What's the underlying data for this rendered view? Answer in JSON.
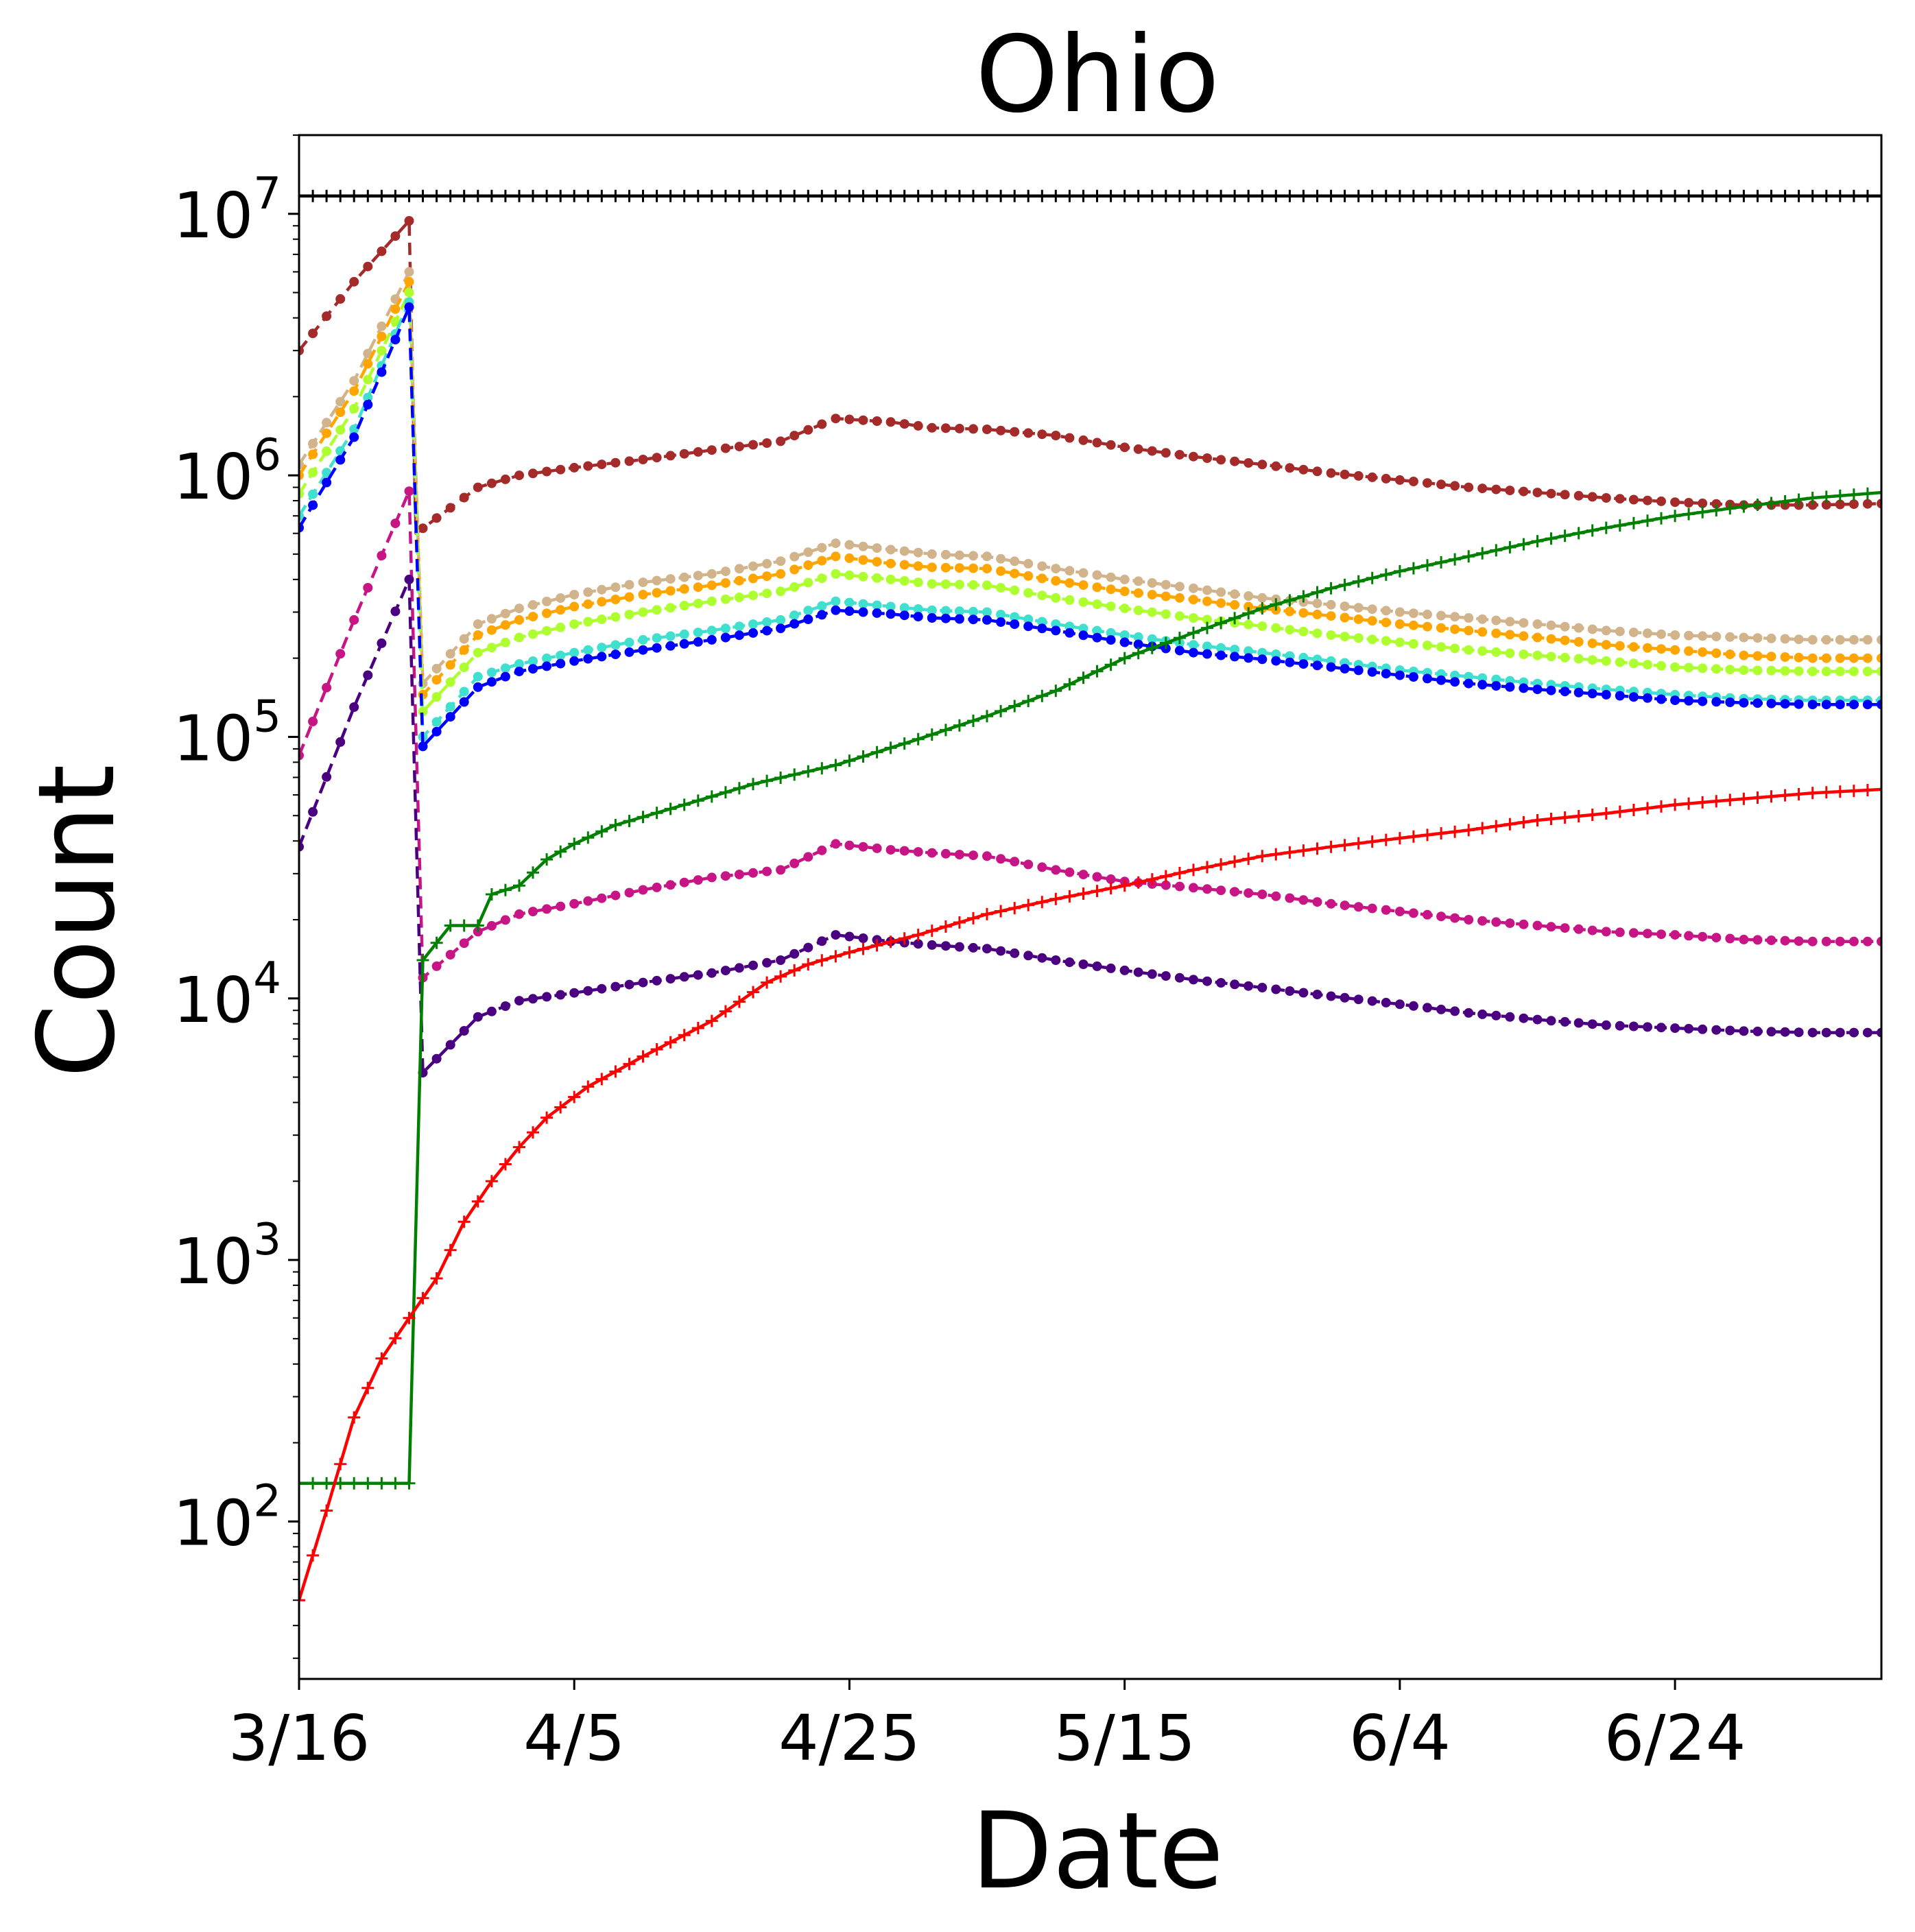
{
  "chart_data": {
    "type": "line",
    "title": "Ohio",
    "xlabel": "Date",
    "ylabel": "Count",
    "yscale": "log",
    "ylim": [
      25,
      20000000
    ],
    "xlim_days": [
      0,
      115
    ],
    "x_ticks": [
      {
        "day": 0,
        "label": "3/16"
      },
      {
        "day": 20,
        "label": "4/5"
      },
      {
        "day": 40,
        "label": "4/25"
      },
      {
        "day": 60,
        "label": "5/15"
      },
      {
        "day": 80,
        "label": "6/4"
      },
      {
        "day": 100,
        "label": "6/24"
      }
    ],
    "y_ticks": [
      {
        "value": 100,
        "base": "10",
        "exp": "2"
      },
      {
        "value": 1000,
        "base": "10",
        "exp": "3"
      },
      {
        "value": 10000,
        "base": "10",
        "exp": "4"
      },
      {
        "value": 100000,
        "base": "10",
        "exp": "5"
      },
      {
        "value": 1000000,
        "base": "10",
        "exp": "6"
      },
      {
        "value": 10000000,
        "base": "10",
        "exp": "7"
      }
    ],
    "grid": false,
    "legend": "none",
    "series": [
      {
        "color": "#000000",
        "style": "solid",
        "marker": "plus",
        "points": [
          [
            0,
            11700000
          ],
          [
            115,
            11700000
          ]
        ]
      },
      {
        "color": "#a52a2a",
        "style": "dashed",
        "marker": "dot",
        "points": [
          [
            0,
            3000000
          ],
          [
            4,
            5500000
          ],
          [
            8,
            9400000
          ],
          [
            8.5,
            600000
          ],
          [
            13,
            900000
          ],
          [
            16,
            1000000
          ],
          [
            20,
            1070000
          ],
          [
            25,
            1150000
          ],
          [
            30,
            1250000
          ],
          [
            35,
            1350000
          ],
          [
            39,
            1650000
          ],
          [
            43,
            1600000
          ],
          [
            46,
            1520000
          ],
          [
            50,
            1500000
          ],
          [
            55,
            1420000
          ],
          [
            60,
            1280000
          ],
          [
            65,
            1180000
          ],
          [
            70,
            1100000
          ],
          [
            75,
            1020000
          ],
          [
            80,
            960000
          ],
          [
            85,
            900000
          ],
          [
            90,
            860000
          ],
          [
            95,
            820000
          ],
          [
            100,
            790000
          ],
          [
            105,
            770000
          ],
          [
            110,
            770000
          ],
          [
            115,
            780000
          ]
        ]
      },
      {
        "color": "#d2b48c",
        "style": "dashed",
        "marker": "dot",
        "points": [
          [
            0,
            1100000
          ],
          [
            4,
            2300000
          ],
          [
            8,
            6000000
          ],
          [
            9,
            160000
          ],
          [
            13,
            270000
          ],
          [
            16,
            310000
          ],
          [
            20,
            350000
          ],
          [
            25,
            390000
          ],
          [
            30,
            420000
          ],
          [
            35,
            470000
          ],
          [
            39,
            550000
          ],
          [
            43,
            520000
          ],
          [
            46,
            500000
          ],
          [
            50,
            490000
          ],
          [
            55,
            440000
          ],
          [
            60,
            400000
          ],
          [
            65,
            370000
          ],
          [
            70,
            340000
          ],
          [
            75,
            320000
          ],
          [
            80,
            300000
          ],
          [
            85,
            285000
          ],
          [
            90,
            270000
          ],
          [
            95,
            255000
          ],
          [
            100,
            245000
          ],
          [
            105,
            240000
          ],
          [
            110,
            235000
          ],
          [
            115,
            235000
          ]
        ]
      },
      {
        "color": "#ffa500",
        "style": "dashed",
        "marker": "dot",
        "points": [
          [
            0,
            1000000
          ],
          [
            4,
            2100000
          ],
          [
            8,
            5500000
          ],
          [
            9,
            145000
          ],
          [
            13,
            245000
          ],
          [
            16,
            280000
          ],
          [
            20,
            315000
          ],
          [
            25,
            350000
          ],
          [
            30,
            380000
          ],
          [
            35,
            420000
          ],
          [
            39,
            490000
          ],
          [
            43,
            460000
          ],
          [
            46,
            445000
          ],
          [
            50,
            440000
          ],
          [
            55,
            395000
          ],
          [
            60,
            360000
          ],
          [
            65,
            335000
          ],
          [
            70,
            310000
          ],
          [
            75,
            290000
          ],
          [
            80,
            270000
          ],
          [
            85,
            255000
          ],
          [
            90,
            240000
          ],
          [
            95,
            225000
          ],
          [
            100,
            215000
          ],
          [
            105,
            205000
          ],
          [
            110,
            200000
          ],
          [
            115,
            200000
          ]
        ]
      },
      {
        "color": "#adff2f",
        "style": "dashed",
        "marker": "dot",
        "points": [
          [
            0,
            850000
          ],
          [
            4,
            1800000
          ],
          [
            8,
            5000000
          ],
          [
            9,
            125000
          ],
          [
            13,
            210000
          ],
          [
            16,
            240000
          ],
          [
            20,
            270000
          ],
          [
            25,
            300000
          ],
          [
            30,
            330000
          ],
          [
            35,
            360000
          ],
          [
            39,
            420000
          ],
          [
            43,
            400000
          ],
          [
            46,
            385000
          ],
          [
            50,
            380000
          ],
          [
            55,
            340000
          ],
          [
            60,
            310000
          ],
          [
            65,
            285000
          ],
          [
            70,
            265000
          ],
          [
            75,
            245000
          ],
          [
            80,
            230000
          ],
          [
            85,
            215000
          ],
          [
            90,
            205000
          ],
          [
            95,
            195000
          ],
          [
            100,
            185000
          ],
          [
            105,
            180000
          ],
          [
            110,
            178000
          ],
          [
            115,
            178000
          ]
        ]
      },
      {
        "color": "#40e0d0",
        "style": "dashed",
        "marker": "dot",
        "points": [
          [
            0,
            700000
          ],
          [
            4,
            1500000
          ],
          [
            8,
            4600000
          ],
          [
            9,
            100000
          ],
          [
            13,
            170000
          ],
          [
            16,
            190000
          ],
          [
            20,
            210000
          ],
          [
            25,
            235000
          ],
          [
            30,
            255000
          ],
          [
            35,
            280000
          ],
          [
            39,
            330000
          ],
          [
            43,
            315000
          ],
          [
            46,
            305000
          ],
          [
            50,
            300000
          ],
          [
            55,
            270000
          ],
          [
            60,
            245000
          ],
          [
            65,
            225000
          ],
          [
            70,
            210000
          ],
          [
            75,
            195000
          ],
          [
            80,
            180000
          ],
          [
            85,
            170000
          ],
          [
            90,
            160000
          ],
          [
            95,
            152000
          ],
          [
            100,
            145000
          ],
          [
            105,
            140000
          ],
          [
            110,
            138000
          ],
          [
            115,
            138000
          ]
        ]
      },
      {
        "color": "#0000ff",
        "style": "dashed",
        "marker": "dot",
        "points": [
          [
            0,
            630000
          ],
          [
            4,
            1400000
          ],
          [
            8,
            4400000
          ],
          [
            9,
            92000
          ],
          [
            13,
            155000
          ],
          [
            16,
            178000
          ],
          [
            20,
            195000
          ],
          [
            25,
            215000
          ],
          [
            30,
            235000
          ],
          [
            35,
            260000
          ],
          [
            39,
            305000
          ],
          [
            43,
            295000
          ],
          [
            46,
            285000
          ],
          [
            50,
            280000
          ],
          [
            55,
            255000
          ],
          [
            60,
            230000
          ],
          [
            65,
            210000
          ],
          [
            70,
            198000
          ],
          [
            75,
            185000
          ],
          [
            80,
            172000
          ],
          [
            85,
            160000
          ],
          [
            90,
            152000
          ],
          [
            95,
            145000
          ],
          [
            100,
            138000
          ],
          [
            105,
            135000
          ],
          [
            110,
            133000
          ],
          [
            115,
            133000
          ]
        ]
      },
      {
        "color": "#c71585",
        "style": "dashed",
        "marker": "dot",
        "points": [
          [
            0,
            85000
          ],
          [
            4,
            280000
          ],
          [
            8,
            870000
          ],
          [
            9,
            12000
          ],
          [
            13,
            18000
          ],
          [
            16,
            21000
          ],
          [
            20,
            23000
          ],
          [
            25,
            26000
          ],
          [
            30,
            29000
          ],
          [
            35,
            31000
          ],
          [
            39,
            39000
          ],
          [
            43,
            37000
          ],
          [
            46,
            36000
          ],
          [
            50,
            35000
          ],
          [
            55,
            31000
          ],
          [
            60,
            28000
          ],
          [
            65,
            26500
          ],
          [
            70,
            25000
          ],
          [
            75,
            23000
          ],
          [
            80,
            21500
          ],
          [
            85,
            20000
          ],
          [
            90,
            19000
          ],
          [
            95,
            18000
          ],
          [
            100,
            17500
          ],
          [
            105,
            16800
          ],
          [
            110,
            16500
          ],
          [
            115,
            16500
          ]
        ]
      },
      {
        "color": "#4b0082",
        "style": "dashed",
        "marker": "dot",
        "points": [
          [
            0,
            38000
          ],
          [
            4,
            130000
          ],
          [
            8,
            400000
          ],
          [
            9,
            5200
          ],
          [
            13,
            8500
          ],
          [
            16,
            9800
          ],
          [
            20,
            10500
          ],
          [
            25,
            11500
          ],
          [
            30,
            12500
          ],
          [
            35,
            14000
          ],
          [
            39,
            17500
          ],
          [
            43,
            16500
          ],
          [
            46,
            16000
          ],
          [
            50,
            15500
          ],
          [
            55,
            14000
          ],
          [
            60,
            12800
          ],
          [
            65,
            11800
          ],
          [
            70,
            11000
          ],
          [
            75,
            10200
          ],
          [
            80,
            9500
          ],
          [
            85,
            8800
          ],
          [
            90,
            8300
          ],
          [
            95,
            7900
          ],
          [
            100,
            7700
          ],
          [
            105,
            7500
          ],
          [
            110,
            7400
          ],
          [
            115,
            7400
          ]
        ]
      },
      {
        "color": "#008000",
        "style": "solid",
        "marker": "plus",
        "points": [
          [
            0,
            140
          ],
          [
            8,
            140
          ],
          [
            9,
            14000
          ],
          [
            11,
            19000
          ],
          [
            13,
            19000
          ],
          [
            14,
            25000
          ],
          [
            16,
            27000
          ],
          [
            18,
            34000
          ],
          [
            20,
            39000
          ],
          [
            23,
            46000
          ],
          [
            28,
            55000
          ],
          [
            33,
            66000
          ],
          [
            39,
            78000
          ],
          [
            45,
            98000
          ],
          [
            50,
            120000
          ],
          [
            55,
            150000
          ],
          [
            60,
            200000
          ],
          [
            65,
            250000
          ],
          [
            70,
            310000
          ],
          [
            75,
            370000
          ],
          [
            80,
            430000
          ],
          [
            85,
            490000
          ],
          [
            90,
            560000
          ],
          [
            95,
            630000
          ],
          [
            100,
            700000
          ],
          [
            105,
            760000
          ],
          [
            110,
            820000
          ],
          [
            115,
            860000
          ]
        ]
      },
      {
        "color": "#ff0000",
        "style": "solid",
        "marker": "plus",
        "points": [
          [
            0,
            50
          ],
          [
            2,
            110
          ],
          [
            4,
            250
          ],
          [
            6,
            420
          ],
          [
            8,
            600
          ],
          [
            10,
            850
          ],
          [
            12,
            1400
          ],
          [
            14,
            2000
          ],
          [
            16,
            2700
          ],
          [
            18,
            3500
          ],
          [
            21,
            4600
          ],
          [
            25,
            6000
          ],
          [
            30,
            8200
          ],
          [
            34,
            11500
          ],
          [
            37,
            13500
          ],
          [
            40,
            15000
          ],
          [
            45,
            17500
          ],
          [
            50,
            21000
          ],
          [
            55,
            24000
          ],
          [
            60,
            27000
          ],
          [
            65,
            31000
          ],
          [
            70,
            35000
          ],
          [
            75,
            38000
          ],
          [
            80,
            41000
          ],
          [
            85,
            44000
          ],
          [
            90,
            48000
          ],
          [
            95,
            51000
          ],
          [
            100,
            55000
          ],
          [
            105,
            58000
          ],
          [
            110,
            61000
          ],
          [
            115,
            63000
          ]
        ]
      }
    ]
  }
}
